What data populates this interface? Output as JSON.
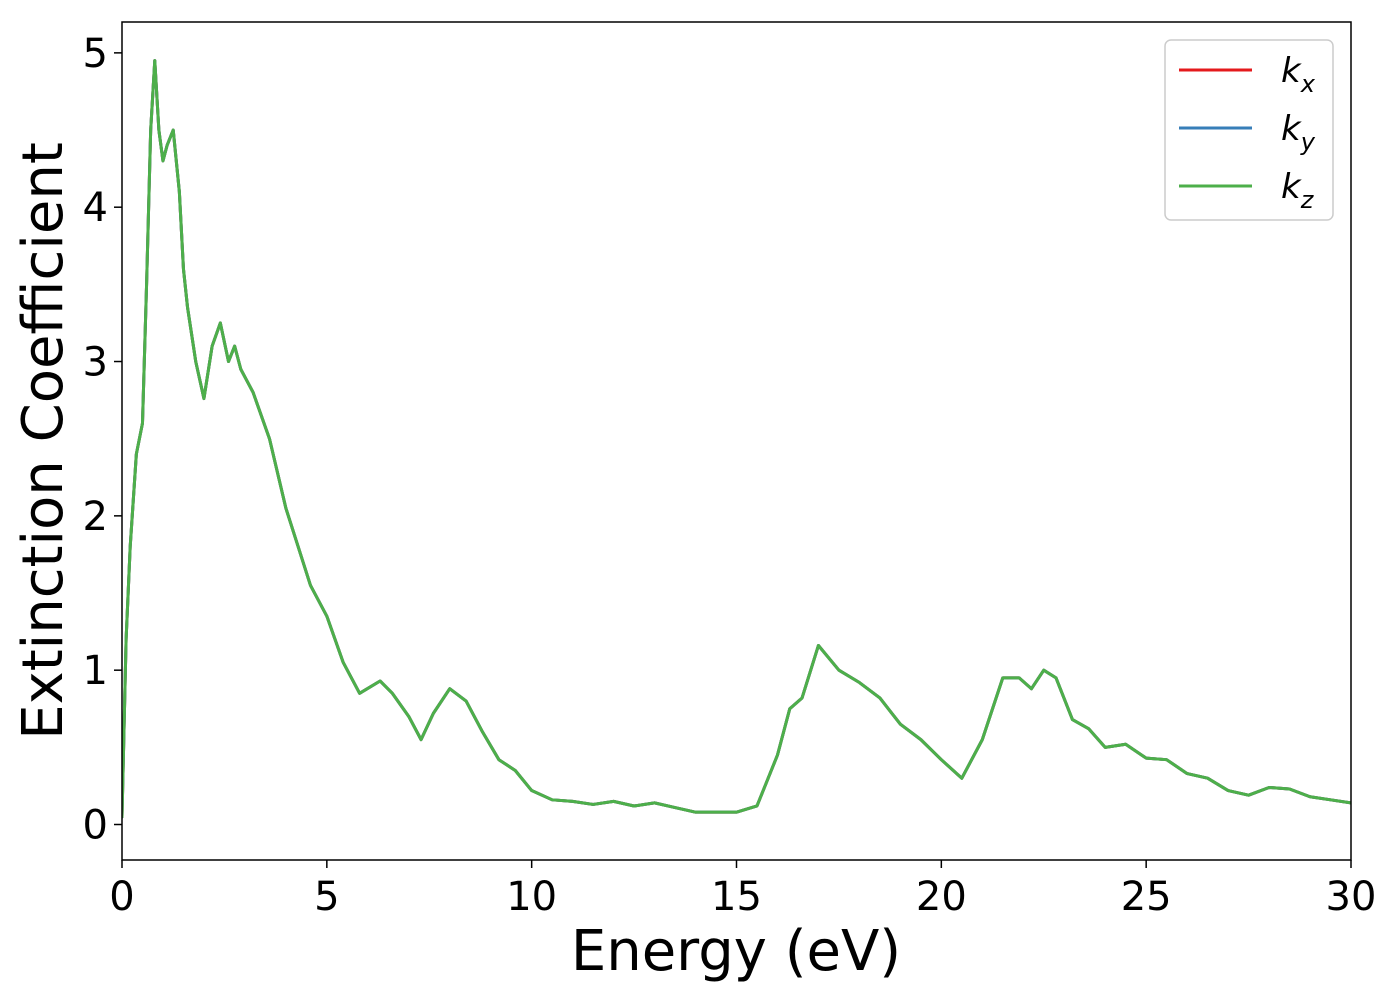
{
  "chart_data": {
    "type": "line",
    "title": "",
    "xlabel": "Energy (eV)",
    "ylabel": "Extinction Coefficient",
    "xlim": [
      0,
      30
    ],
    "ylim": [
      -0.23,
      5.2
    ],
    "xticks": [
      0,
      5,
      10,
      15,
      20,
      25,
      30
    ],
    "yticks": [
      0,
      1,
      2,
      3,
      4,
      5
    ],
    "grid": false,
    "legend_position": "top-right",
    "series": [
      {
        "name": "k",
        "subscript": "x",
        "color": "#e41a1c",
        "x": [
          0,
          0.1,
          0.2,
          0.35,
          0.5,
          0.6,
          0.7,
          0.8,
          0.9,
          1.0,
          1.1,
          1.25,
          1.4,
          1.5,
          1.6,
          1.8,
          2.0,
          2.2,
          2.4,
          2.6,
          2.75,
          2.9,
          3.2,
          3.6,
          4.0,
          4.3,
          4.6,
          5.0,
          5.4,
          5.8,
          6.3,
          6.6,
          7.0,
          7.3,
          7.6,
          8.0,
          8.4,
          8.8,
          9.2,
          9.6,
          10.0,
          10.5,
          11.0,
          11.5,
          12.0,
          12.5,
          13.0,
          13.5,
          14.0,
          14.5,
          15.0,
          15.5,
          16.0,
          16.3,
          16.6,
          17.0,
          17.5,
          18.0,
          18.5,
          19.0,
          19.5,
          20.0,
          20.5,
          21.0,
          21.5,
          21.9,
          22.2,
          22.5,
          22.8,
          23.2,
          23.6,
          24.0,
          24.5,
          25.0,
          25.5,
          26.0,
          26.5,
          27.0,
          27.5,
          28.0,
          28.5,
          29.0,
          29.5,
          30.0
        ],
        "y": [
          0.05,
          1.2,
          1.8,
          2.4,
          2.6,
          3.5,
          4.5,
          4.95,
          4.5,
          4.3,
          4.4,
          4.5,
          4.1,
          3.6,
          3.35,
          3.0,
          2.76,
          3.1,
          3.25,
          3.0,
          3.1,
          2.95,
          2.8,
          2.5,
          2.05,
          1.8,
          1.55,
          1.35,
          1.05,
          0.85,
          0.93,
          0.85,
          0.7,
          0.55,
          0.72,
          0.88,
          0.8,
          0.6,
          0.42,
          0.35,
          0.22,
          0.16,
          0.15,
          0.13,
          0.15,
          0.12,
          0.14,
          0.11,
          0.08,
          0.08,
          0.08,
          0.12,
          0.45,
          0.75,
          0.82,
          1.16,
          1.0,
          0.92,
          0.82,
          0.65,
          0.55,
          0.42,
          0.3,
          0.55,
          0.95,
          0.95,
          0.88,
          1.0,
          0.95,
          0.68,
          0.62,
          0.5,
          0.52,
          0.43,
          0.42,
          0.33,
          0.3,
          0.22,
          0.19,
          0.24,
          0.23,
          0.18,
          0.16,
          0.14
        ]
      },
      {
        "name": "k",
        "subscript": "y",
        "color": "#377eb8",
        "x": [
          0,
          0.1,
          0.2,
          0.35,
          0.5,
          0.6,
          0.7,
          0.8,
          0.9,
          1.0,
          1.1,
          1.25,
          1.4,
          1.5,
          1.6,
          1.8,
          2.0,
          2.2,
          2.4,
          2.6,
          2.75,
          2.9,
          3.2,
          3.6,
          4.0,
          4.3,
          4.6,
          5.0,
          5.4,
          5.8,
          6.3,
          6.6,
          7.0,
          7.3,
          7.6,
          8.0,
          8.4,
          8.8,
          9.2,
          9.6,
          10.0,
          10.5,
          11.0,
          11.5,
          12.0,
          12.5,
          13.0,
          13.5,
          14.0,
          14.5,
          15.0,
          15.5,
          16.0,
          16.3,
          16.6,
          17.0,
          17.5,
          18.0,
          18.5,
          19.0,
          19.5,
          20.0,
          20.5,
          21.0,
          21.5,
          21.9,
          22.2,
          22.5,
          22.8,
          23.2,
          23.6,
          24.0,
          24.5,
          25.0,
          25.5,
          26.0,
          26.5,
          27.0,
          27.5,
          28.0,
          28.5,
          29.0,
          29.5,
          30.0
        ],
        "y": [
          0.05,
          1.2,
          1.8,
          2.4,
          2.6,
          3.5,
          4.5,
          4.95,
          4.5,
          4.3,
          4.4,
          4.5,
          4.1,
          3.6,
          3.35,
          3.0,
          2.76,
          3.1,
          3.25,
          3.0,
          3.1,
          2.95,
          2.8,
          2.5,
          2.05,
          1.8,
          1.55,
          1.35,
          1.05,
          0.85,
          0.93,
          0.85,
          0.7,
          0.55,
          0.72,
          0.88,
          0.8,
          0.6,
          0.42,
          0.35,
          0.22,
          0.16,
          0.15,
          0.13,
          0.15,
          0.12,
          0.14,
          0.11,
          0.08,
          0.08,
          0.08,
          0.12,
          0.45,
          0.75,
          0.82,
          1.16,
          1.0,
          0.92,
          0.82,
          0.65,
          0.55,
          0.42,
          0.3,
          0.55,
          0.95,
          0.95,
          0.88,
          1.0,
          0.95,
          0.68,
          0.62,
          0.5,
          0.52,
          0.43,
          0.42,
          0.33,
          0.3,
          0.22,
          0.19,
          0.24,
          0.23,
          0.18,
          0.16,
          0.14
        ]
      },
      {
        "name": "k",
        "subscript": "z",
        "color": "#4daf4a",
        "x": [
          0,
          0.1,
          0.2,
          0.35,
          0.5,
          0.6,
          0.7,
          0.8,
          0.9,
          1.0,
          1.1,
          1.25,
          1.4,
          1.5,
          1.6,
          1.8,
          2.0,
          2.2,
          2.4,
          2.6,
          2.75,
          2.9,
          3.2,
          3.6,
          4.0,
          4.3,
          4.6,
          5.0,
          5.4,
          5.8,
          6.3,
          6.6,
          7.0,
          7.3,
          7.6,
          8.0,
          8.4,
          8.8,
          9.2,
          9.6,
          10.0,
          10.5,
          11.0,
          11.5,
          12.0,
          12.5,
          13.0,
          13.5,
          14.0,
          14.5,
          15.0,
          15.5,
          16.0,
          16.3,
          16.6,
          17.0,
          17.5,
          18.0,
          18.5,
          19.0,
          19.5,
          20.0,
          20.5,
          21.0,
          21.5,
          21.9,
          22.2,
          22.5,
          22.8,
          23.2,
          23.6,
          24.0,
          24.5,
          25.0,
          25.5,
          26.0,
          26.5,
          27.0,
          27.5,
          28.0,
          28.5,
          29.0,
          29.5,
          30.0
        ],
        "y": [
          0.05,
          1.2,
          1.8,
          2.4,
          2.6,
          3.5,
          4.5,
          4.95,
          4.5,
          4.3,
          4.4,
          4.5,
          4.1,
          3.6,
          3.35,
          3.0,
          2.76,
          3.1,
          3.25,
          3.0,
          3.1,
          2.95,
          2.8,
          2.5,
          2.05,
          1.8,
          1.55,
          1.35,
          1.05,
          0.85,
          0.93,
          0.85,
          0.7,
          0.55,
          0.72,
          0.88,
          0.8,
          0.6,
          0.42,
          0.35,
          0.22,
          0.16,
          0.15,
          0.13,
          0.15,
          0.12,
          0.14,
          0.11,
          0.08,
          0.08,
          0.08,
          0.12,
          0.45,
          0.75,
          0.82,
          1.16,
          1.0,
          0.92,
          0.82,
          0.65,
          0.55,
          0.42,
          0.3,
          0.55,
          0.95,
          0.95,
          0.88,
          1.0,
          0.95,
          0.68,
          0.62,
          0.5,
          0.52,
          0.43,
          0.42,
          0.33,
          0.3,
          0.22,
          0.19,
          0.24,
          0.23,
          0.18,
          0.16,
          0.14
        ]
      }
    ]
  }
}
